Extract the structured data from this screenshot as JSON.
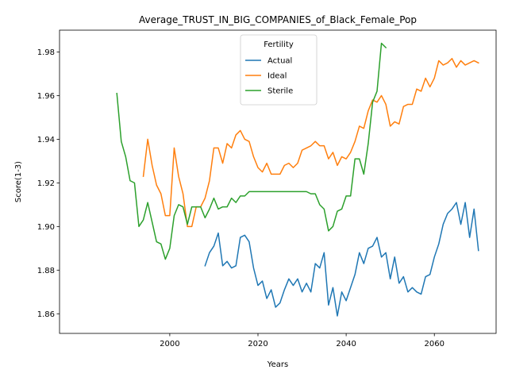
{
  "chart_data": {
    "type": "line",
    "title": "Average_TRUST_IN_BIG_COMPANIES_of_Black_Female_Pop",
    "xlabel": "Years",
    "ylabel": "Score(1-3)",
    "xlim": [
      1975,
      2074
    ],
    "ylim": [
      1.851,
      1.99
    ],
    "x_ticks": [
      2000,
      2020,
      2040,
      2060
    ],
    "y_ticks": [
      1.86,
      1.88,
      1.9,
      1.92,
      1.94,
      1.96,
      1.98
    ],
    "x_tick_labels": [
      "2000",
      "2020",
      "2040",
      "2060"
    ],
    "y_tick_labels": [
      "1.86",
      "1.88",
      "1.90",
      "1.92",
      "1.94",
      "1.96",
      "1.98"
    ],
    "grid": false,
    "legend": {
      "title": "Fertility",
      "placement": "top-center"
    },
    "series": [
      {
        "name": "Actual",
        "color": "#1f77b4",
        "x": [
          2008,
          2009,
          2010,
          2011,
          2012,
          2013,
          2014,
          2015,
          2016,
          2017,
          2018,
          2019,
          2020,
          2021,
          2022,
          2023,
          2024,
          2025,
          2026,
          2027,
          2028,
          2029,
          2030,
          2031,
          2032,
          2033,
          2034,
          2035,
          2036,
          2037,
          2038,
          2039,
          2040,
          2041,
          2042,
          2043,
          2044,
          2045,
          2046,
          2047,
          2048,
          2049,
          2050,
          2051,
          2052,
          2053,
          2054,
          2055,
          2056,
          2057,
          2058,
          2059,
          2060,
          2061,
          2062,
          2063,
          2064,
          2065,
          2066,
          2067,
          2068,
          2069,
          2070
        ],
        "values": [
          1.882,
          1.888,
          1.891,
          1.897,
          1.882,
          1.884,
          1.881,
          1.882,
          1.895,
          1.896,
          1.893,
          1.881,
          1.873,
          1.875,
          1.867,
          1.871,
          1.863,
          1.865,
          1.871,
          1.876,
          1.873,
          1.876,
          1.87,
          1.874,
          1.87,
          1.883,
          1.881,
          1.888,
          1.864,
          1.872,
          1.859,
          1.87,
          1.866,
          1.872,
          1.878,
          1.888,
          1.883,
          1.89,
          1.891,
          1.895,
          1.886,
          1.888,
          1.876,
          1.886,
          1.874,
          1.877,
          1.87,
          1.872,
          1.87,
          1.869,
          1.877,
          1.878,
          1.886,
          1.892,
          1.901,
          1.906,
          1.908,
          1.911,
          1.901,
          1.911,
          1.895,
          1.908,
          1.889
        ]
      },
      {
        "name": "Ideal",
        "color": "#ff7f0e",
        "x": [
          1994,
          1995,
          1996,
          1997,
          1998,
          1999,
          2000,
          2001,
          2002,
          2003,
          2004,
          2005,
          2006,
          2007,
          2008,
          2009,
          2010,
          2011,
          2012,
          2013,
          2014,
          2015,
          2016,
          2017,
          2018,
          2019,
          2020,
          2021,
          2022,
          2023,
          2024,
          2025,
          2026,
          2027,
          2028,
          2029,
          2030,
          2031,
          2032,
          2033,
          2034,
          2035,
          2036,
          2037,
          2038,
          2039,
          2040,
          2041,
          2042,
          2043,
          2044,
          2045,
          2046,
          2047,
          2048,
          2049,
          2050,
          2051,
          2052,
          2053,
          2054,
          2055,
          2056,
          2057,
          2058,
          2059,
          2060,
          2061,
          2062,
          2063,
          2064,
          2065,
          2066,
          2067,
          2068,
          2069,
          2070
        ],
        "values": [
          1.923,
          1.94,
          1.928,
          1.919,
          1.915,
          1.905,
          1.905,
          1.936,
          1.923,
          1.915,
          1.9,
          1.9,
          1.909,
          1.909,
          1.913,
          1.921,
          1.936,
          1.936,
          1.929,
          1.938,
          1.936,
          1.942,
          1.944,
          1.94,
          1.939,
          1.932,
          1.927,
          1.925,
          1.929,
          1.924,
          1.924,
          1.924,
          1.928,
          1.929,
          1.927,
          1.929,
          1.935,
          1.936,
          1.937,
          1.939,
          1.937,
          1.937,
          1.931,
          1.934,
          1.928,
          1.932,
          1.931,
          1.934,
          1.939,
          1.946,
          1.945,
          1.953,
          1.958,
          1.957,
          1.96,
          1.956,
          1.946,
          1.948,
          1.947,
          1.955,
          1.956,
          1.956,
          1.963,
          1.962,
          1.968,
          1.964,
          1.968,
          1.976,
          1.974,
          1.975,
          1.977,
          1.973,
          1.976,
          1.974,
          1.975,
          1.976,
          1.975
        ]
      },
      {
        "name": "Sterile",
        "color": "#2ca02c",
        "x": [
          1988,
          1989,
          1990,
          1991,
          1992,
          1993,
          1994,
          1995,
          1996,
          1997,
          1998,
          1999,
          2000,
          2001,
          2002,
          2003,
          2004,
          2005,
          2006,
          2007,
          2008,
          2009,
          2010,
          2011,
          2012,
          2013,
          2014,
          2015,
          2016,
          2017,
          2018,
          2019,
          2020,
          2021,
          2022,
          2023,
          2024,
          2025,
          2026,
          2027,
          2028,
          2029,
          2030,
          2031,
          2032,
          2033,
          2034,
          2035,
          2036,
          2037,
          2038,
          2039,
          2040,
          2041,
          2042,
          2043,
          2044,
          2045,
          2046,
          2047,
          2048,
          2049
        ],
        "values": [
          1.961,
          1.939,
          1.932,
          1.921,
          1.92,
          1.9,
          1.903,
          1.911,
          1.902,
          1.893,
          1.892,
          1.885,
          1.89,
          1.905,
          1.91,
          1.909,
          1.901,
          1.909,
          1.909,
          1.909,
          1.904,
          1.908,
          1.913,
          1.908,
          1.909,
          1.909,
          1.913,
          1.911,
          1.914,
          1.914,
          1.916,
          1.916,
          1.916,
          1.916,
          1.916,
          1.916,
          1.916,
          1.916,
          1.916,
          1.916,
          1.916,
          1.916,
          1.916,
          1.916,
          1.915,
          1.915,
          1.91,
          1.908,
          1.898,
          1.9,
          1.907,
          1.908,
          1.914,
          1.914,
          1.931,
          1.931,
          1.924,
          1.938,
          1.957,
          1.962,
          1.984,
          1.982
        ]
      }
    ]
  }
}
